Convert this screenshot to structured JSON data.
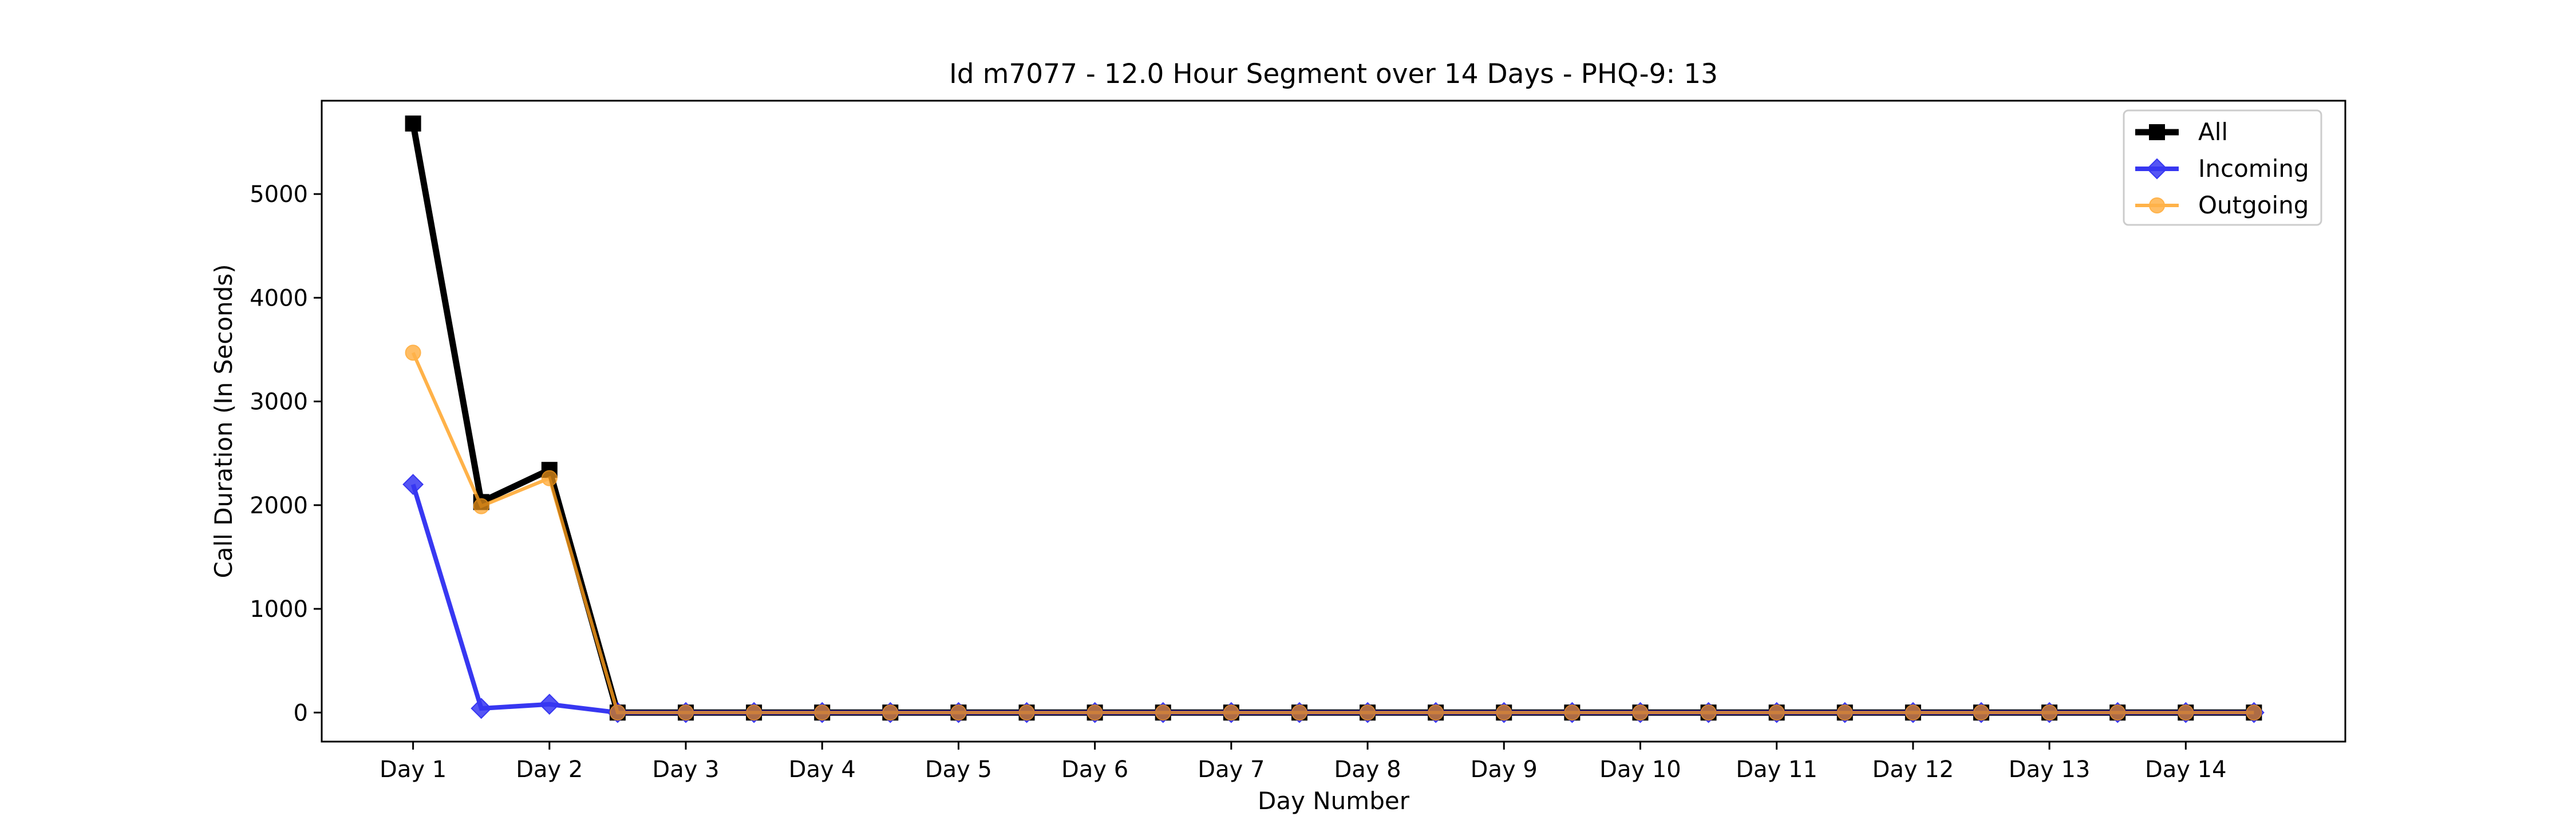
{
  "chart_data": {
    "type": "line",
    "title": "Id m7077 - 12.0 Hour Segment over 14 Days - PHQ-9: 13",
    "xlabel": "Day Number",
    "ylabel": "Call Duration (In Seconds)",
    "categories": [
      "Day 1",
      "Day 2",
      "Day 3",
      "Day 4",
      "Day 5",
      "Day 6",
      "Day 7",
      "Day 8",
      "Day 9",
      "Day 10",
      "Day 11",
      "Day 12",
      "Day 13",
      "Day 14"
    ],
    "x": [
      1,
      1.5,
      2,
      2.5,
      3,
      3.5,
      4,
      4.5,
      5,
      5.5,
      6,
      6.5,
      7,
      7.5,
      8,
      8.5,
      9,
      9.5,
      10,
      10.5,
      11,
      11.5,
      12,
      12.5,
      13,
      13.5,
      14,
      14.5
    ],
    "xlim": [
      0.33,
      15.17
    ],
    "ylim": [
      -280,
      5900
    ],
    "yticks": [
      0,
      1000,
      2000,
      3000,
      4000,
      5000
    ],
    "grid": false,
    "legend": "top-right",
    "series": [
      {
        "name": "All",
        "color": "#000000",
        "marker": "square",
        "values": [
          5680,
          2030,
          2340,
          0,
          0,
          0,
          0,
          0,
          0,
          0,
          0,
          0,
          0,
          0,
          0,
          0,
          0,
          0,
          0,
          0,
          0,
          0,
          0,
          0,
          0,
          0,
          0,
          0
        ]
      },
      {
        "name": "Incoming",
        "color": "#0000ee",
        "marker": "diamond",
        "values": [
          2200,
          40,
          80,
          0,
          0,
          0,
          0,
          0,
          0,
          0,
          0,
          0,
          0,
          0,
          0,
          0,
          0,
          0,
          0,
          0,
          0,
          0,
          0,
          0,
          0,
          0,
          0,
          0
        ]
      },
      {
        "name": "Outgoing",
        "color": "#ff9f1c",
        "marker": "circle",
        "values": [
          3470,
          1990,
          2260,
          0,
          0,
          0,
          0,
          0,
          0,
          0,
          0,
          0,
          0,
          0,
          0,
          0,
          0,
          0,
          0,
          0,
          0,
          0,
          0,
          0,
          0,
          0,
          0,
          0
        ]
      }
    ]
  }
}
